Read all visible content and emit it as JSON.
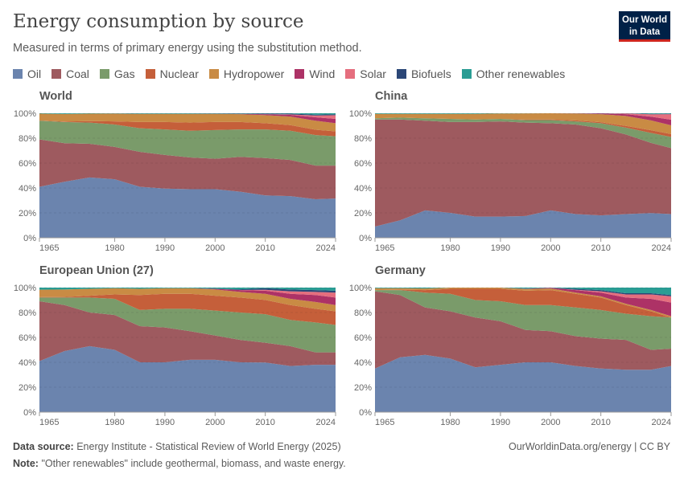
{
  "header": {
    "title": "Energy consumption by source",
    "subtitle": "Measured in terms of primary energy using the substitution method.",
    "logo_line1": "Our World",
    "logo_line2": "in Data"
  },
  "footer": {
    "source_label": "Data source:",
    "source": "Energy Institute - Statistical Review of World Energy (2025)",
    "note_label": "Note:",
    "note": "\"Other renewables\" include geothermal, biomass, and waste energy.",
    "link": "OurWorldinData.org/energy | CC BY"
  },
  "chart_data": {
    "type": "area",
    "stacked": true,
    "ylim": [
      0,
      100
    ],
    "y_ticks": [
      "0%",
      "20%",
      "40%",
      "60%",
      "80%",
      "100%"
    ],
    "x_ticks": [
      "1965",
      "1980",
      "1990",
      "2000",
      "2010",
      "2024"
    ],
    "xlim": [
      1965,
      2024
    ],
    "grid": true,
    "legend_position": "top",
    "series": [
      {
        "name": "Oil",
        "color": "#6b84ae"
      },
      {
        "name": "Coal",
        "color": "#9e5a5f"
      },
      {
        "name": "Gas",
        "color": "#7a9b6a"
      },
      {
        "name": "Nuclear",
        "color": "#c55f3a"
      },
      {
        "name": "Hydropower",
        "color": "#c98b44"
      },
      {
        "name": "Wind",
        "color": "#ad3266"
      },
      {
        "name": "Solar",
        "color": "#e56e7e"
      },
      {
        "name": "Biofuels",
        "color": "#2b4777"
      },
      {
        "name": "Other renewables",
        "color": "#2a9d94"
      }
    ],
    "years": [
      1965,
      1970,
      1975,
      1980,
      1985,
      1990,
      1995,
      2000,
      2005,
      2010,
      2015,
      2020,
      2024
    ],
    "panels": [
      {
        "title": "World",
        "shares": [
          [
            41,
            38,
            15,
            0.2,
            5.5,
            0,
            0,
            0,
            0.3
          ],
          [
            45,
            31,
            17,
            0.4,
            6,
            0,
            0,
            0,
            0.6
          ],
          [
            48.5,
            27,
            17,
            1.2,
            6,
            0,
            0,
            0,
            0.3
          ],
          [
            47,
            26,
            18,
            2.5,
            6.2,
            0,
            0,
            0.1,
            0.2
          ],
          [
            41,
            28,
            19,
            5,
            6.5,
            0,
            0,
            0.1,
            0.4
          ],
          [
            39.5,
            27,
            20.5,
            6,
            6.5,
            0,
            0,
            0.1,
            0.4
          ],
          [
            39,
            25.5,
            21.5,
            6.5,
            7,
            0,
            0,
            0.1,
            0.4
          ],
          [
            39,
            24.5,
            23,
            6.5,
            6.5,
            0.1,
            0,
            0.1,
            0.3
          ],
          [
            37,
            28,
            22,
            6,
            6.3,
            0.2,
            0,
            0.2,
            0.3
          ],
          [
            34,
            30,
            23,
            5,
            6.5,
            0.7,
            0.1,
            0.5,
            0.2
          ],
          [
            33.5,
            29,
            23.5,
            4.5,
            6.8,
            1.4,
            0.4,
            0.6,
            0.3
          ],
          [
            31,
            27,
            24.5,
            4.3,
            7.2,
            2.8,
            1.4,
            0.7,
            1.1
          ],
          [
            31.5,
            26.5,
            23.5,
            4,
            6.5,
            3.5,
            3,
            0.7,
            0.8
          ]
        ]
      },
      {
        "title": "China",
        "shares": [
          [
            9,
            86,
            1,
            0,
            3.5,
            0,
            0,
            0,
            0.5
          ],
          [
            14,
            81,
            1.5,
            0,
            3,
            0,
            0,
            0,
            0.5
          ],
          [
            22,
            72,
            2,
            0,
            3.5,
            0,
            0,
            0,
            0.5
          ],
          [
            20,
            73,
            2.5,
            0,
            4,
            0,
            0,
            0,
            0.5
          ],
          [
            17,
            76,
            2,
            0,
            4.5,
            0,
            0,
            0,
            0.5
          ],
          [
            17,
            76.5,
            2,
            0,
            4.3,
            0,
            0,
            0,
            0.2
          ],
          [
            17.5,
            75,
            2,
            0.4,
            5,
            0,
            0,
            0,
            0.1
          ],
          [
            22,
            70,
            2.5,
            0.5,
            5,
            0,
            0,
            0,
            0
          ],
          [
            19,
            72,
            2.5,
            0.8,
            5.5,
            0.1,
            0,
            0.1,
            0
          ],
          [
            18,
            70,
            4,
            0.8,
            6.5,
            0.5,
            0,
            0.2,
            0
          ],
          [
            19,
            64,
            5.5,
            1.3,
            8,
            1.5,
            0.5,
            0.2,
            0
          ],
          [
            20,
            57,
            8,
            2.2,
            8,
            3,
            2,
            0.3,
            0.5
          ],
          [
            19,
            53,
            9,
            2.3,
            7,
            4.5,
            4.5,
            0.3,
            0.4
          ]
        ]
      },
      {
        "title": "European Union (27)",
        "shares": [
          [
            41,
            48,
            3,
            0.3,
            6,
            0,
            0,
            0,
            1.7
          ],
          [
            49,
            37,
            6,
            0.5,
            6,
            0,
            0,
            0,
            1.5
          ],
          [
            53,
            27,
            12,
            1.5,
            5.5,
            0,
            0,
            0,
            1
          ],
          [
            50,
            28,
            13,
            3.5,
            5,
            0,
            0,
            0,
            0.5
          ],
          [
            40,
            29,
            13,
            12,
            5,
            0,
            0,
            0,
            1
          ],
          [
            40,
            28,
            15,
            12,
            4.5,
            0,
            0,
            0,
            0.5
          ],
          [
            42,
            23,
            18,
            12,
            4.5,
            0,
            0,
            0,
            0.5
          ],
          [
            42,
            19.5,
            20,
            12,
            5,
            0.5,
            0,
            0.1,
            0.9
          ],
          [
            40,
            18,
            22,
            12,
            4.5,
            1.5,
            0.1,
            0.5,
            1.4
          ],
          [
            40,
            16,
            23,
            11.5,
            5,
            2.5,
            0.7,
            1.3,
            0.5
          ],
          [
            37,
            16,
            21,
            12,
            5,
            4,
            2,
            1.5,
            1.5
          ],
          [
            38,
            10,
            24,
            11,
            5.5,
            5.5,
            2.5,
            1.5,
            2
          ],
          [
            38,
            10,
            22,
            11,
            5,
            6,
            4,
            1.5,
            2.5
          ]
        ]
      },
      {
        "title": "Germany",
        "shares": [
          [
            35,
            62,
            1,
            0,
            1.5,
            0,
            0,
            0,
            0.5
          ],
          [
            44,
            50,
            4,
            0.3,
            1.2,
            0,
            0,
            0,
            0.5
          ],
          [
            46,
            38,
            12,
            2,
            1.3,
            0,
            0,
            0,
            0.7
          ],
          [
            43,
            38,
            14,
            4,
            1,
            0,
            0,
            0,
            0
          ],
          [
            36,
            40,
            14,
            9,
            1,
            0,
            0,
            0,
            0
          ],
          [
            38,
            35,
            16,
            10,
            1,
            0,
            0,
            0,
            0
          ],
          [
            40,
            26,
            20,
            11.5,
            1.3,
            0.3,
            0,
            0,
            0.9
          ],
          [
            40,
            25,
            21,
            12,
            1.3,
            0.5,
            0,
            0.1,
            0.1
          ],
          [
            37,
            24,
            23,
            11,
            1,
            2,
            0.2,
            0.8,
            1
          ],
          [
            35,
            24,
            23,
            10,
            1,
            3,
            1,
            1,
            2
          ],
          [
            34,
            24,
            21,
            7,
            1,
            5,
            2.5,
            1,
            4.5
          ],
          [
            34,
            16,
            27,
            4,
            1,
            9,
            3.5,
            1,
            4.5
          ],
          [
            37,
            14,
            25,
            0,
            1,
            11,
            5,
            1,
            6
          ]
        ]
      }
    ]
  }
}
